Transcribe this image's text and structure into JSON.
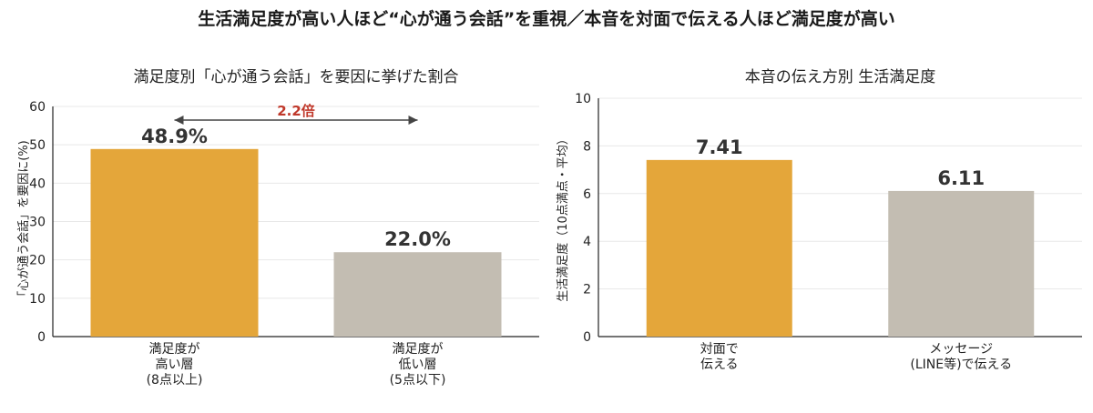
{
  "main_title": "生活満足度が高い人ほど“心が通う会話”を重視／本音を対面で伝える人ほど満足度が高い",
  "colors": {
    "accent": "#E4A63A",
    "neutral": "#C3BDB2",
    "annotation": "#C0392B"
  },
  "chart_data": [
    {
      "type": "bar",
      "title": "満足度別「心が通う会話」を要因に挙げた割合",
      "ylabel": "「心が通う会話」を要因に(%)",
      "xlabel": "",
      "categories": [
        "満足度が\n高い層\n(8点以上)",
        "満足度が\n低い層\n(5点以下)"
      ],
      "values": [
        48.9,
        22.0
      ],
      "data_labels": [
        "48.9%",
        "22.0%"
      ],
      "colors": [
        "#E4A63A",
        "#C3BDB2"
      ],
      "ylim": [
        0,
        60
      ],
      "yticks": [
        0,
        10,
        20,
        30,
        40,
        50,
        60
      ],
      "grid": true,
      "annotation": {
        "text": "2.2倍",
        "type": "double-arrow"
      }
    },
    {
      "type": "bar",
      "title": "本音の伝え方別 生活満足度",
      "ylabel": "生活満足度（10点満点・平均）",
      "xlabel": "",
      "categories": [
        "対面で\n伝える",
        "メッセージ\n(LINE等)で伝える"
      ],
      "values": [
        7.41,
        6.11
      ],
      "data_labels": [
        "7.41",
        "6.11"
      ],
      "colors": [
        "#E4A63A",
        "#C3BDB2"
      ],
      "ylim": [
        0,
        10
      ],
      "yticks": [
        0,
        2,
        4,
        6,
        8,
        10
      ],
      "grid": true
    }
  ]
}
